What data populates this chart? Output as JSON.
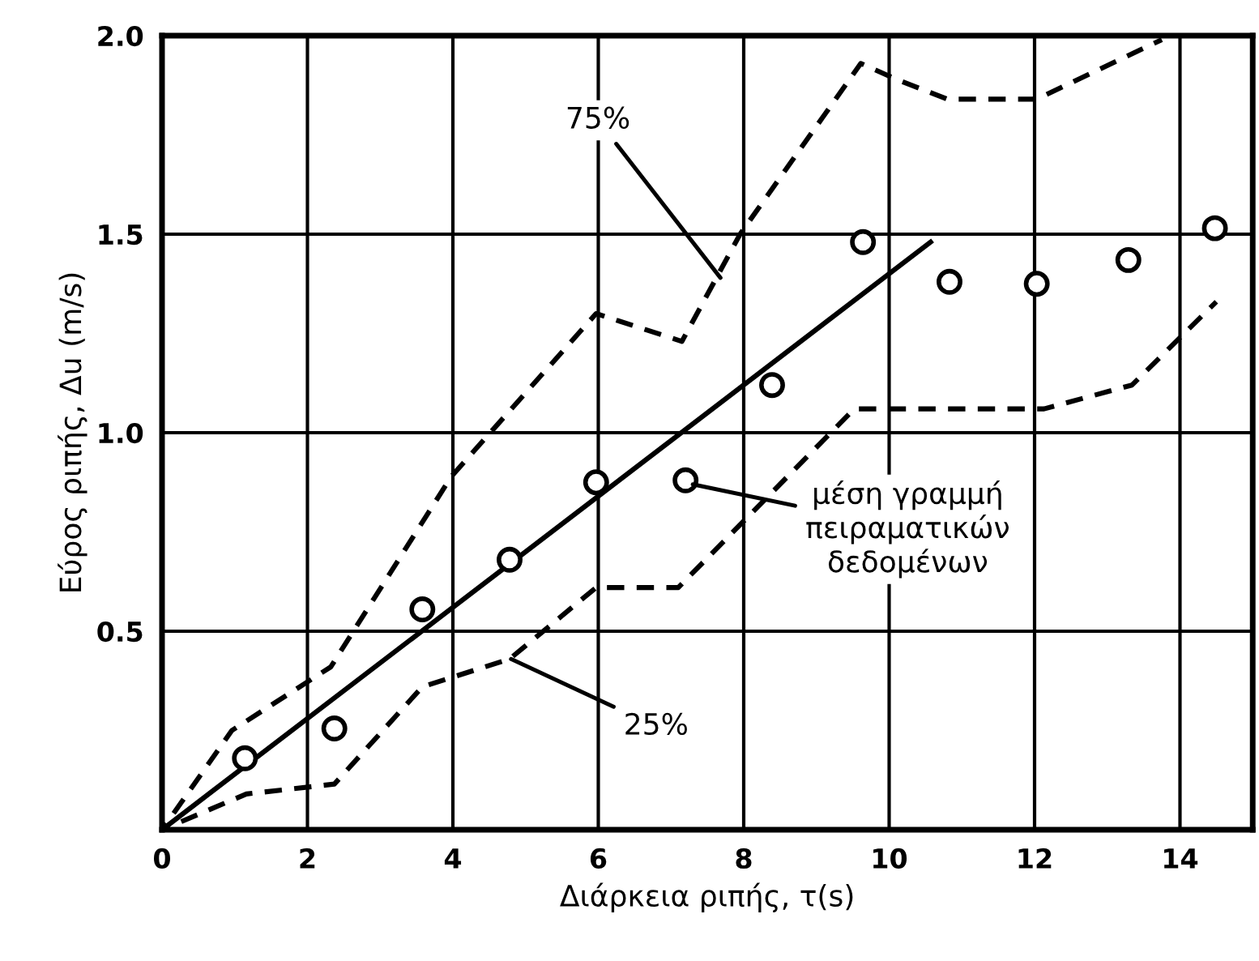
{
  "chart_data": {
    "type": "scatter",
    "xlabel": "Διάρκεια ριπής, τ(s)",
    "ylabel": "Εύρος ριπής, Δu (m/s)",
    "xlim": [
      0,
      15
    ],
    "ylim": [
      0,
      2.0
    ],
    "xticks": [
      0,
      2,
      4,
      6,
      8,
      10,
      12,
      14
    ],
    "yticks": [
      {
        "value": 0,
        "label": null
      },
      0.5,
      {
        "value": 1.0,
        "label": "1.0"
      },
      1.5,
      {
        "value": 2.0,
        "label": "2.0"
      }
    ],
    "grid": true,
    "legend": false,
    "series": [
      {
        "type": "scatter",
        "marker": "circle",
        "color": "#000000",
        "x": [
          1.14,
          2.37,
          3.58,
          4.78,
          5.97,
          7.2,
          8.39,
          9.64,
          10.83,
          12.03,
          13.29,
          14.48
        ],
        "values": [
          0.18,
          0.255,
          0.555,
          0.68,
          0.875,
          0.88,
          1.12,
          1.48,
          1.38,
          1.375,
          1.435,
          1.515
        ]
      },
      {
        "type": "line",
        "line_style": "solid",
        "color": "#000000",
        "x": [
          0,
          10.57
        ],
        "values": [
          0,
          1.48
        ]
      },
      {
        "type": "line",
        "line_style": "dashed",
        "color": "#000000",
        "x": [
          0,
          0.96,
          2.32,
          3.98,
          5.97,
          7.15,
          7.95,
          9.61,
          10.1,
          10.8,
          12.03,
          13.75
        ],
        "values": [
          0,
          0.25,
          0.41,
          0.89,
          1.3,
          1.23,
          1.5,
          1.93,
          1.89,
          1.84,
          1.84,
          1.99
        ]
      },
      {
        "type": "line",
        "line_style": "dashed",
        "color": "#000000",
        "x": [
          0,
          1.16,
          2.37,
          3.58,
          4.78,
          5.97,
          7.1,
          9.52,
          12.13,
          13.34,
          14.5
        ],
        "values": [
          0,
          0.09,
          0.115,
          0.36,
          0.43,
          0.61,
          0.61,
          1.06,
          1.06,
          1.12,
          1.33
        ]
      }
    ],
    "annotations": [
      {
        "text": "75%",
        "x": 7.68,
        "y": 1.39
      },
      {
        "text": "25%",
        "x": 4.8,
        "y": 0.43
      },
      {
        "text": "μέση γραμμή\nπειραματικών\nδεδομένων",
        "x": 7.3,
        "y": 0.87
      }
    ]
  }
}
